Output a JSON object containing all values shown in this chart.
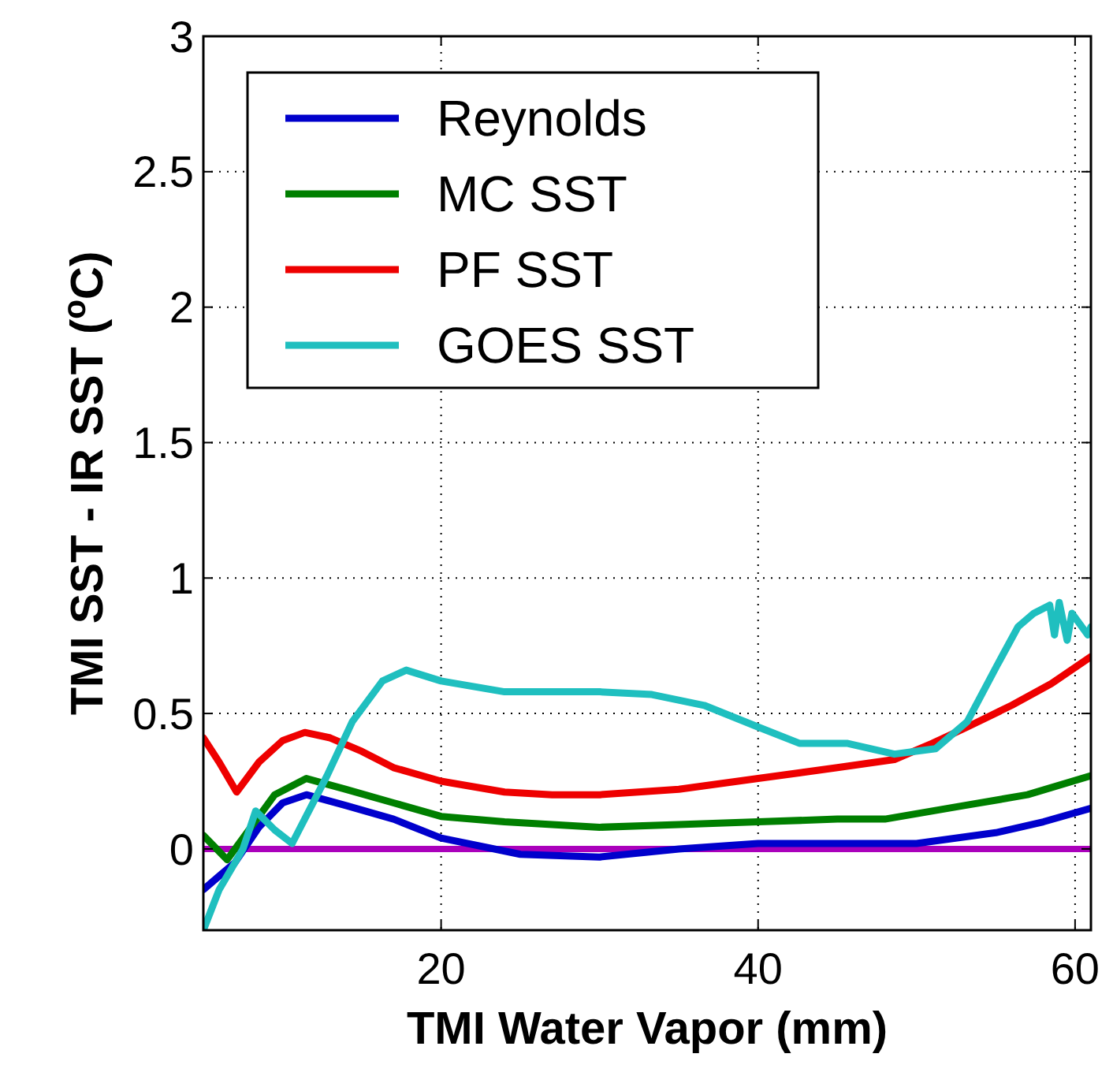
{
  "chart_data": {
    "type": "line",
    "xlabel": "TMI Water Vapor (mm)",
    "ylabel": "TMI SST - IR SST ($^{o}$C)",
    "xlim": [
      5,
      61
    ],
    "ylim": [
      -0.3,
      3
    ],
    "xticks": [
      20,
      40,
      60
    ],
    "yticks": [
      0,
      0.5,
      1,
      1.5,
      2,
      2.5,
      3
    ],
    "grid": true,
    "legend": "top left",
    "line_style": "solid",
    "marker": "none",
    "ref_lines": [
      {
        "axis": "y",
        "value": 0,
        "color": "#aa00bb"
      }
    ],
    "series": [
      {
        "name": "Reynolds",
        "color": "#0000cc",
        "x": [
          5,
          6,
          7,
          8.5,
          10,
          11.5,
          14,
          17,
          20,
          25,
          30,
          35,
          40,
          45,
          50,
          55,
          58,
          61
        ],
        "values": [
          -0.15,
          -0.1,
          -0.05,
          0.08,
          0.17,
          0.2,
          0.16,
          0.11,
          0.04,
          -0.02,
          -0.03,
          0,
          0.02,
          0.02,
          0.02,
          0.06,
          0.1,
          0.15
        ]
      },
      {
        "name": "MC SST",
        "color": "#007f00",
        "x": [
          5,
          6.5,
          8,
          9.5,
          11.5,
          14,
          17,
          20,
          24,
          27,
          30,
          35,
          40,
          45,
          48,
          53,
          57,
          61
        ],
        "values": [
          0.05,
          -0.04,
          0.08,
          0.2,
          0.26,
          0.22,
          0.17,
          0.12,
          0.1,
          0.09,
          0.08,
          0.09,
          0.1,
          0.11,
          0.11,
          0.16,
          0.2,
          0.27
        ]
      },
      {
        "name": "PF SST",
        "color": "#ee0000",
        "x": [
          5,
          6,
          7.1,
          8.5,
          10,
          11.4,
          13,
          15,
          17,
          20,
          24,
          27,
          30,
          35,
          40,
          45,
          48.6,
          51,
          53.2,
          56,
          58.5,
          61
        ],
        "values": [
          0.41,
          0.32,
          0.21,
          0.32,
          0.4,
          0.43,
          0.41,
          0.36,
          0.3,
          0.25,
          0.21,
          0.2,
          0.2,
          0.22,
          0.26,
          0.3,
          0.33,
          0.39,
          0.45,
          0.53,
          0.61,
          0.71
        ]
      },
      {
        "name": "GOES SST",
        "color": "#1fbfbf",
        "x": [
          5,
          6,
          7.5,
          8.3,
          9.5,
          10.6,
          12.8,
          14.4,
          16.3,
          17.8,
          20,
          24,
          28,
          30,
          33.3,
          36.6,
          40,
          42.6,
          45.6,
          48.6,
          51.2,
          53.2,
          55.1,
          56.4,
          57.4,
          58.4,
          58.7,
          59,
          59.5,
          59.8,
          60.8,
          61
        ],
        "values": [
          -0.3,
          -0.15,
          0,
          0.14,
          0.07,
          0.02,
          0.27,
          0.47,
          0.62,
          0.66,
          0.62,
          0.58,
          0.58,
          0.58,
          0.57,
          0.53,
          0.45,
          0.39,
          0.39,
          0.35,
          0.37,
          0.47,
          0.68,
          0.82,
          0.87,
          0.9,
          0.79,
          0.91,
          0.77,
          0.87,
          0.79,
          0.82
        ]
      }
    ]
  }
}
